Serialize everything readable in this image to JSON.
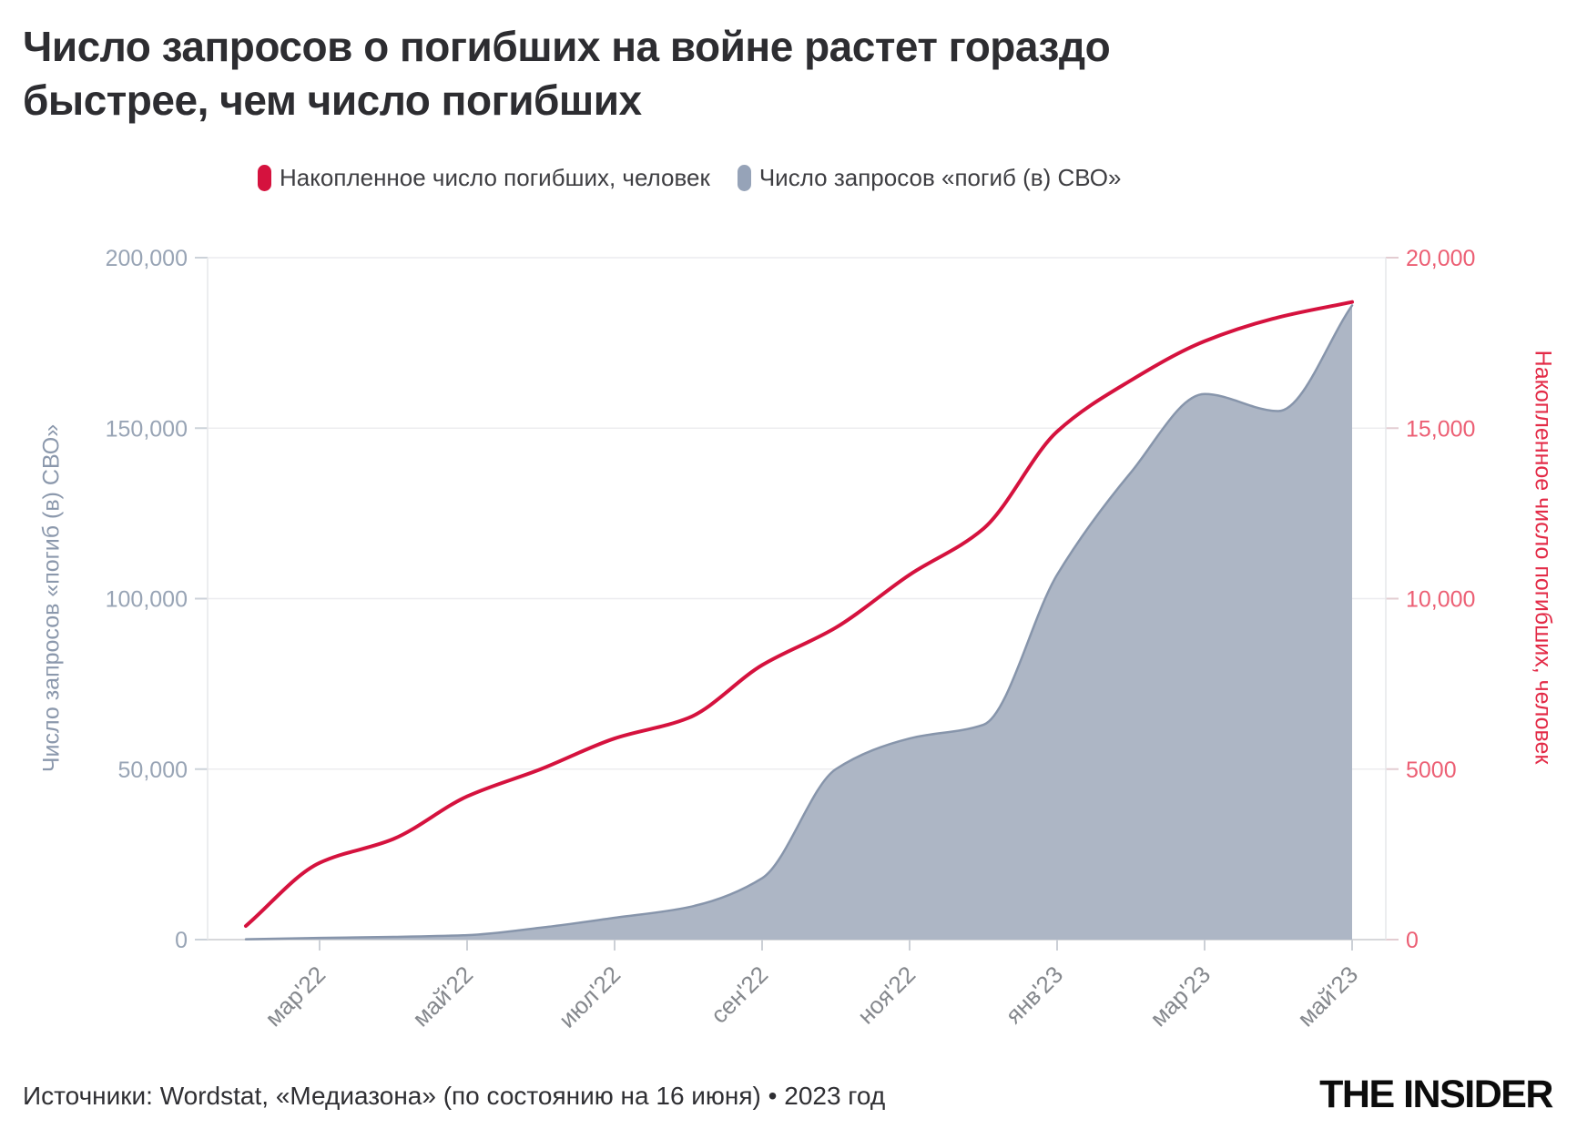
{
  "title": {
    "line1": "Число запросов о погибших на войне растет гораздо",
    "line2": "быстрее, чем число погибших"
  },
  "legend": {
    "items": [
      {
        "label": "Накопленное число погибших, человек",
        "color": "#d5123e"
      },
      {
        "label": "Число запросов «погиб (в) СВО»",
        "color": "#96a3b8"
      }
    ]
  },
  "footer": {
    "source": "Источники: Wordstat, «Медиазона» (по состоянию на 16 июня) • 2023 год",
    "logo": "THE INSIDER"
  },
  "chart_data": {
    "type": "area+line, dual y-axis monthly time series",
    "months": [
      "фев'22",
      "мар'22",
      "апр'22",
      "май'22",
      "июн'22",
      "июл'22",
      "авг'22",
      "сен'22",
      "окт'22",
      "ноя'22",
      "дек'22",
      "янв'23",
      "фев'23",
      "мар'23",
      "апр'23",
      "май'23"
    ],
    "x_ticks_shown": {
      "indices": [
        1,
        3,
        5,
        7,
        9,
        11,
        13,
        15
      ],
      "labels": [
        "мар'22",
        "май'22",
        "июл'22",
        "сен'22",
        "ноя'22",
        "янв'23",
        "мар'23",
        "май'23"
      ]
    },
    "left_axis": {
      "title": "Число запросов «погиб (в) СВО»",
      "min": 0,
      "max": 200000,
      "tick_values": [
        0,
        50000,
        100000,
        150000,
        200000
      ],
      "tick_labels": [
        "0",
        "50,000",
        "100,000",
        "150,000",
        "200,000"
      ],
      "tick_color": "#98a4b5"
    },
    "right_axis": {
      "title": "Накопленное число погибших, человек",
      "min": 0,
      "max": 20000,
      "tick_values": [
        0,
        5000,
        10000,
        15000,
        20000
      ],
      "tick_labels": [
        "0",
        "5000",
        "10,000",
        "15,000",
        "20,000"
      ],
      "tick_color": "#ec5f74",
      "title_color": "#e32b47"
    },
    "series": [
      {
        "name": "Число запросов «погиб (в) СВО»",
        "type": "area",
        "axis": "left",
        "fill": "#adb6c5",
        "stroke": "#8795ab",
        "values": [
          100,
          500,
          800,
          1300,
          3500,
          6400,
          9500,
          18000,
          50000,
          59000,
          63000,
          107000,
          137000,
          160000,
          155000,
          186000
        ]
      },
      {
        "name": "Накопленное число погибших, человек",
        "type": "line",
        "axis": "right",
        "color": "#d5123e",
        "values": [
          400,
          2250,
          2950,
          4200,
          5000,
          5900,
          6500,
          8050,
          9150,
          10700,
          12050,
          14900,
          16400,
          17550,
          18250,
          18700
        ]
      }
    ],
    "grid": true,
    "legend_position": "top"
  }
}
